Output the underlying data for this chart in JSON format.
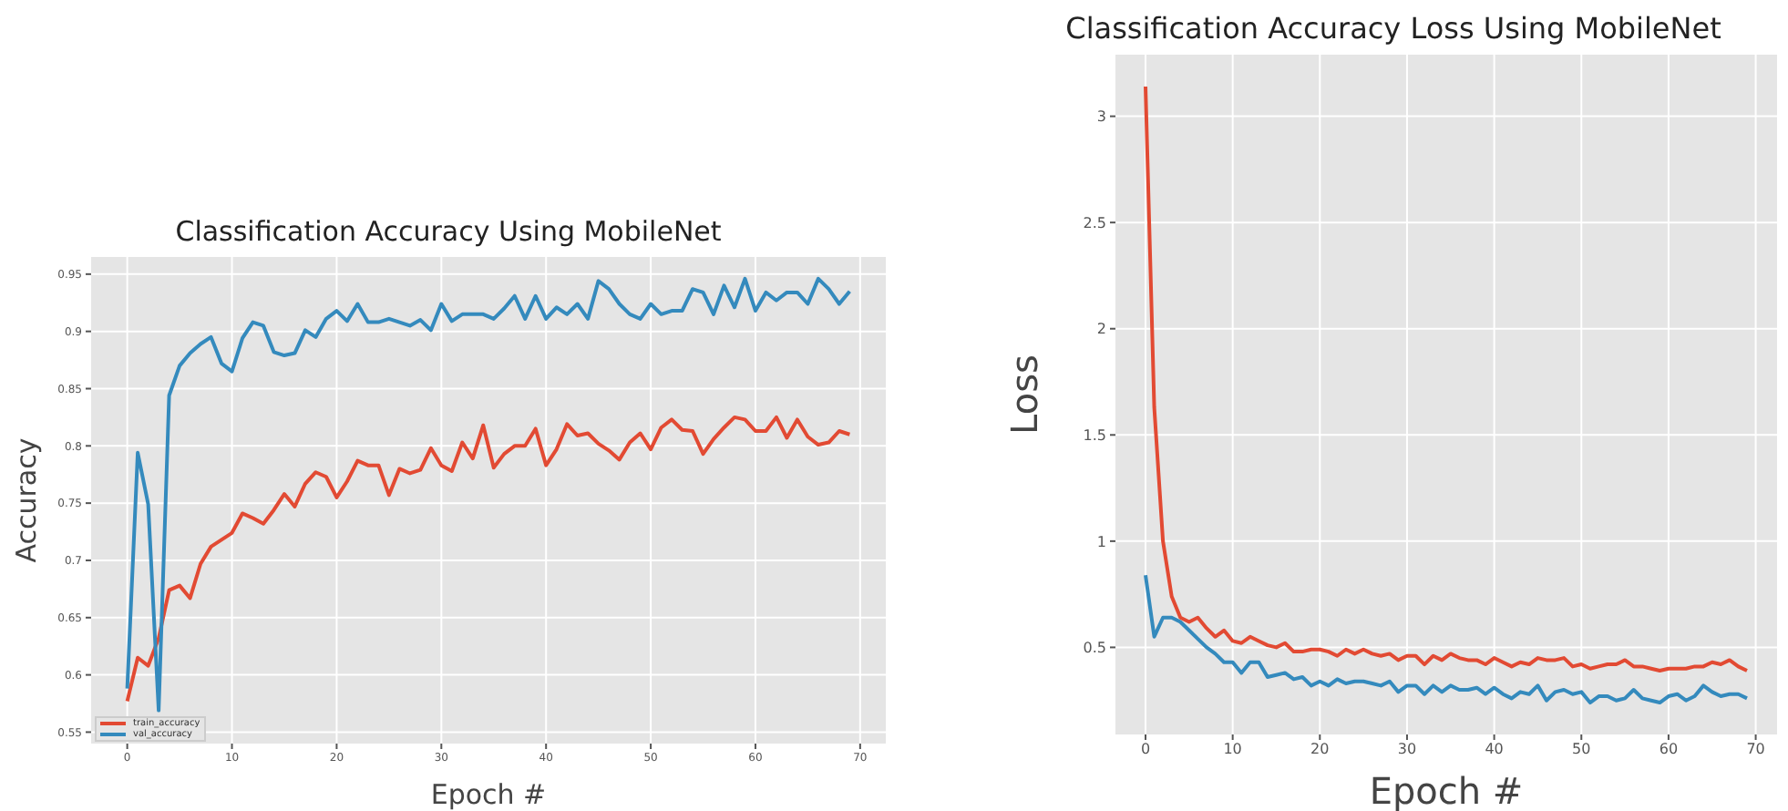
{
  "chart_data": [
    {
      "type": "line",
      "title": "Classification Accuracy Using MobileNet",
      "xlabel": "Epoch #",
      "ylabel": "Accuracy",
      "x": [
        0,
        1,
        2,
        3,
        4,
        5,
        6,
        7,
        8,
        9,
        10,
        11,
        12,
        13,
        14,
        15,
        16,
        17,
        18,
        19,
        20,
        21,
        22,
        23,
        24,
        25,
        26,
        27,
        28,
        29,
        30,
        31,
        32,
        33,
        34,
        35,
        36,
        37,
        38,
        39,
        40,
        41,
        42,
        43,
        44,
        45,
        46,
        47,
        48,
        49,
        50,
        51,
        52,
        53,
        54,
        55,
        56,
        57,
        58,
        59,
        60,
        61,
        62,
        63,
        64,
        65,
        66,
        67,
        68,
        69
      ],
      "series": [
        {
          "name": "train_accuracy",
          "color": "#e24a33",
          "values": [
            0.577,
            0.615,
            0.608,
            0.632,
            0.674,
            0.678,
            0.667,
            0.697,
            0.712,
            0.718,
            0.724,
            0.741,
            0.737,
            0.732,
            0.744,
            0.758,
            0.747,
            0.767,
            0.777,
            0.773,
            0.755,
            0.769,
            0.787,
            0.783,
            0.783,
            0.757,
            0.78,
            0.776,
            0.779,
            0.798,
            0.783,
            0.778,
            0.803,
            0.789,
            0.818,
            0.781,
            0.793,
            0.8,
            0.8,
            0.815,
            0.783,
            0.797,
            0.819,
            0.809,
            0.811,
            0.802,
            0.796,
            0.788,
            0.803,
            0.811,
            0.797,
            0.816,
            0.823,
            0.814,
            0.813,
            0.793,
            0.806,
            0.816,
            0.825,
            0.823,
            0.813,
            0.813,
            0.825,
            0.807,
            0.823,
            0.808,
            0.801,
            0.803,
            0.813,
            0.81
          ]
        },
        {
          "name": "val_accuracy",
          "color": "#348abd",
          "values": [
            0.588,
            0.794,
            0.749,
            0.569,
            0.844,
            0.87,
            0.881,
            0.889,
            0.895,
            0.872,
            0.865,
            0.894,
            0.908,
            0.905,
            0.882,
            0.879,
            0.881,
            0.901,
            0.895,
            0.911,
            0.918,
            0.909,
            0.924,
            0.908,
            0.908,
            0.911,
            0.908,
            0.905,
            0.91,
            0.901,
            0.924,
            0.909,
            0.915,
            0.915,
            0.915,
            0.911,
            0.92,
            0.931,
            0.911,
            0.931,
            0.911,
            0.921,
            0.915,
            0.924,
            0.911,
            0.944,
            0.937,
            0.924,
            0.915,
            0.911,
            0.924,
            0.915,
            0.918,
            0.918,
            0.937,
            0.934,
            0.915,
            0.94,
            0.921,
            0.946,
            0.918,
            0.934,
            0.927,
            0.934,
            0.934,
            0.924,
            0.946,
            0.937,
            0.924,
            0.935
          ]
        }
      ],
      "xlim": [
        -3.45,
        72.45
      ],
      "xticks": [
        0,
        10,
        20,
        30,
        40,
        50,
        60,
        70
      ],
      "ylim": [
        0.54,
        0.965
      ],
      "yticks": [
        0.55,
        0.6,
        0.65,
        0.7,
        0.75,
        0.8,
        0.85,
        0.9,
        0.95
      ],
      "grid": true,
      "legend": "bottom left"
    },
    {
      "type": "line",
      "title": "Classification Accuracy Loss Using MobileNet",
      "xlabel": "Epoch #",
      "ylabel": "Loss",
      "x": [
        0,
        1,
        2,
        3,
        4,
        5,
        6,
        7,
        8,
        9,
        10,
        11,
        12,
        13,
        14,
        15,
        16,
        17,
        18,
        19,
        20,
        21,
        22,
        23,
        24,
        25,
        26,
        27,
        28,
        29,
        30,
        31,
        32,
        33,
        34,
        35,
        36,
        37,
        38,
        39,
        40,
        41,
        42,
        43,
        44,
        45,
        46,
        47,
        48,
        49,
        50,
        51,
        52,
        53,
        54,
        55,
        56,
        57,
        58,
        59,
        60,
        61,
        62,
        63,
        64,
        65,
        66,
        67,
        68,
        69
      ],
      "series": [
        {
          "color": "#e24a33",
          "values": [
            3.14,
            1.63,
            1.0,
            0.74,
            0.64,
            0.62,
            0.64,
            0.59,
            0.55,
            0.58,
            0.53,
            0.52,
            0.55,
            0.53,
            0.51,
            0.5,
            0.52,
            0.48,
            0.48,
            0.49,
            0.49,
            0.48,
            0.46,
            0.49,
            0.47,
            0.49,
            0.47,
            0.46,
            0.47,
            0.44,
            0.46,
            0.46,
            0.42,
            0.46,
            0.44,
            0.47,
            0.45,
            0.44,
            0.44,
            0.42,
            0.45,
            0.43,
            0.41,
            0.43,
            0.42,
            0.45,
            0.44,
            0.44,
            0.45,
            0.41,
            0.42,
            0.4,
            0.41,
            0.42,
            0.42,
            0.44,
            0.41,
            0.41,
            0.4,
            0.39,
            0.4,
            0.4,
            0.4,
            0.41,
            0.41,
            0.43,
            0.42,
            0.44,
            0.41,
            0.39
          ]
        },
        {
          "color": "#348abd",
          "values": [
            0.84,
            0.55,
            0.64,
            0.64,
            0.62,
            0.58,
            0.54,
            0.5,
            0.47,
            0.43,
            0.43,
            0.38,
            0.43,
            0.43,
            0.36,
            0.37,
            0.38,
            0.35,
            0.36,
            0.32,
            0.34,
            0.32,
            0.35,
            0.33,
            0.34,
            0.34,
            0.33,
            0.32,
            0.34,
            0.29,
            0.32,
            0.32,
            0.28,
            0.32,
            0.29,
            0.32,
            0.3,
            0.3,
            0.31,
            0.28,
            0.31,
            0.28,
            0.26,
            0.29,
            0.28,
            0.32,
            0.25,
            0.29,
            0.3,
            0.28,
            0.29,
            0.24,
            0.27,
            0.27,
            0.25,
            0.26,
            0.3,
            0.26,
            0.25,
            0.24,
            0.27,
            0.28,
            0.25,
            0.27,
            0.32,
            0.29,
            0.27,
            0.28,
            0.28,
            0.26
          ]
        }
      ],
      "xlim": [
        -3.45,
        72.45
      ],
      "xticks": [
        0,
        10,
        20,
        30,
        40,
        50,
        60,
        70
      ],
      "ylim": [
        0.09,
        3.29
      ],
      "yticks": [
        0.5,
        1.0,
        1.5,
        2.0,
        2.5,
        3.0
      ],
      "grid": true
    }
  ]
}
